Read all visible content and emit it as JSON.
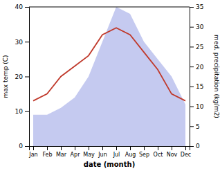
{
  "chart_data": {
    "type": "line",
    "categories": [
      "Jan",
      "Feb",
      "Mar",
      "Apr",
      "May",
      "Jun",
      "Jul",
      "Aug",
      "Sep",
      "Oct",
      "Nov",
      "Dec"
    ],
    "series": [
      {
        "type": "area",
        "color": "#c5caf0",
        "values": [
          9,
          9,
          11,
          14,
          20,
          30,
          40,
          38,
          30,
          25,
          20,
          12
        ]
      },
      {
        "type": "line",
        "color": "#c0392b",
        "values": [
          13,
          15,
          20,
          23,
          26,
          32,
          34,
          32,
          27,
          22,
          15,
          13
        ]
      }
    ],
    "xlabel": "date (month)",
    "ylabel": "max temp (C)",
    "y2label": "med. precipitation (kg/m2)",
    "ylim": [
      0,
      40
    ],
    "yticks": [
      0,
      10,
      20,
      30,
      40
    ],
    "y2lim": [
      0,
      35
    ],
    "y2ticks": [
      0,
      5,
      10,
      15,
      20,
      25,
      30,
      35
    ],
    "grid": false
  }
}
